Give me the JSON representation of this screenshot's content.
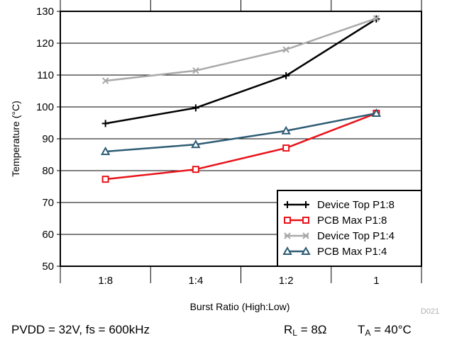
{
  "chart_data": {
    "type": "line",
    "categories": [
      "1:8",
      "1:4",
      "1:2",
      "1"
    ],
    "xlabel": "Burst Ratio (High:Low)",
    "ylabel": "Temperature (°C)",
    "ylim": [
      50,
      130
    ],
    "yticks": [
      50,
      60,
      70,
      80,
      90,
      100,
      110,
      120,
      130
    ],
    "grid": "horizontal",
    "legend_position": "bottom-right",
    "series": [
      {
        "name": "Device Top P1:8",
        "color": "#000000",
        "marker": "plus",
        "values": [
          94.8,
          99.7,
          109.8,
          127.6
        ]
      },
      {
        "name": "PCB Max P1:8",
        "color": "#e8141b",
        "marker": "square",
        "values": [
          77.3,
          80.4,
          87.1,
          98.0
        ]
      },
      {
        "name": "Device Top P1:4",
        "color": "#a9a9a9",
        "marker": "cross",
        "values": [
          108.2,
          111.4,
          118.0,
          127.8
        ]
      },
      {
        "name": "PCB Max P1:4",
        "color": "#2e5c74",
        "marker": "triangle",
        "values": [
          86.0,
          88.2,
          92.5,
          98.0
        ]
      }
    ]
  },
  "figure_code": "D021",
  "footer": {
    "supply": "PVDD = 32V, fs = 600kHz",
    "load_prefix": "R",
    "load_sub": "L",
    "load_value": " = 8Ω",
    "ambient_prefix": "T",
    "ambient_sub": "A",
    "ambient_value": " = 40°C"
  }
}
